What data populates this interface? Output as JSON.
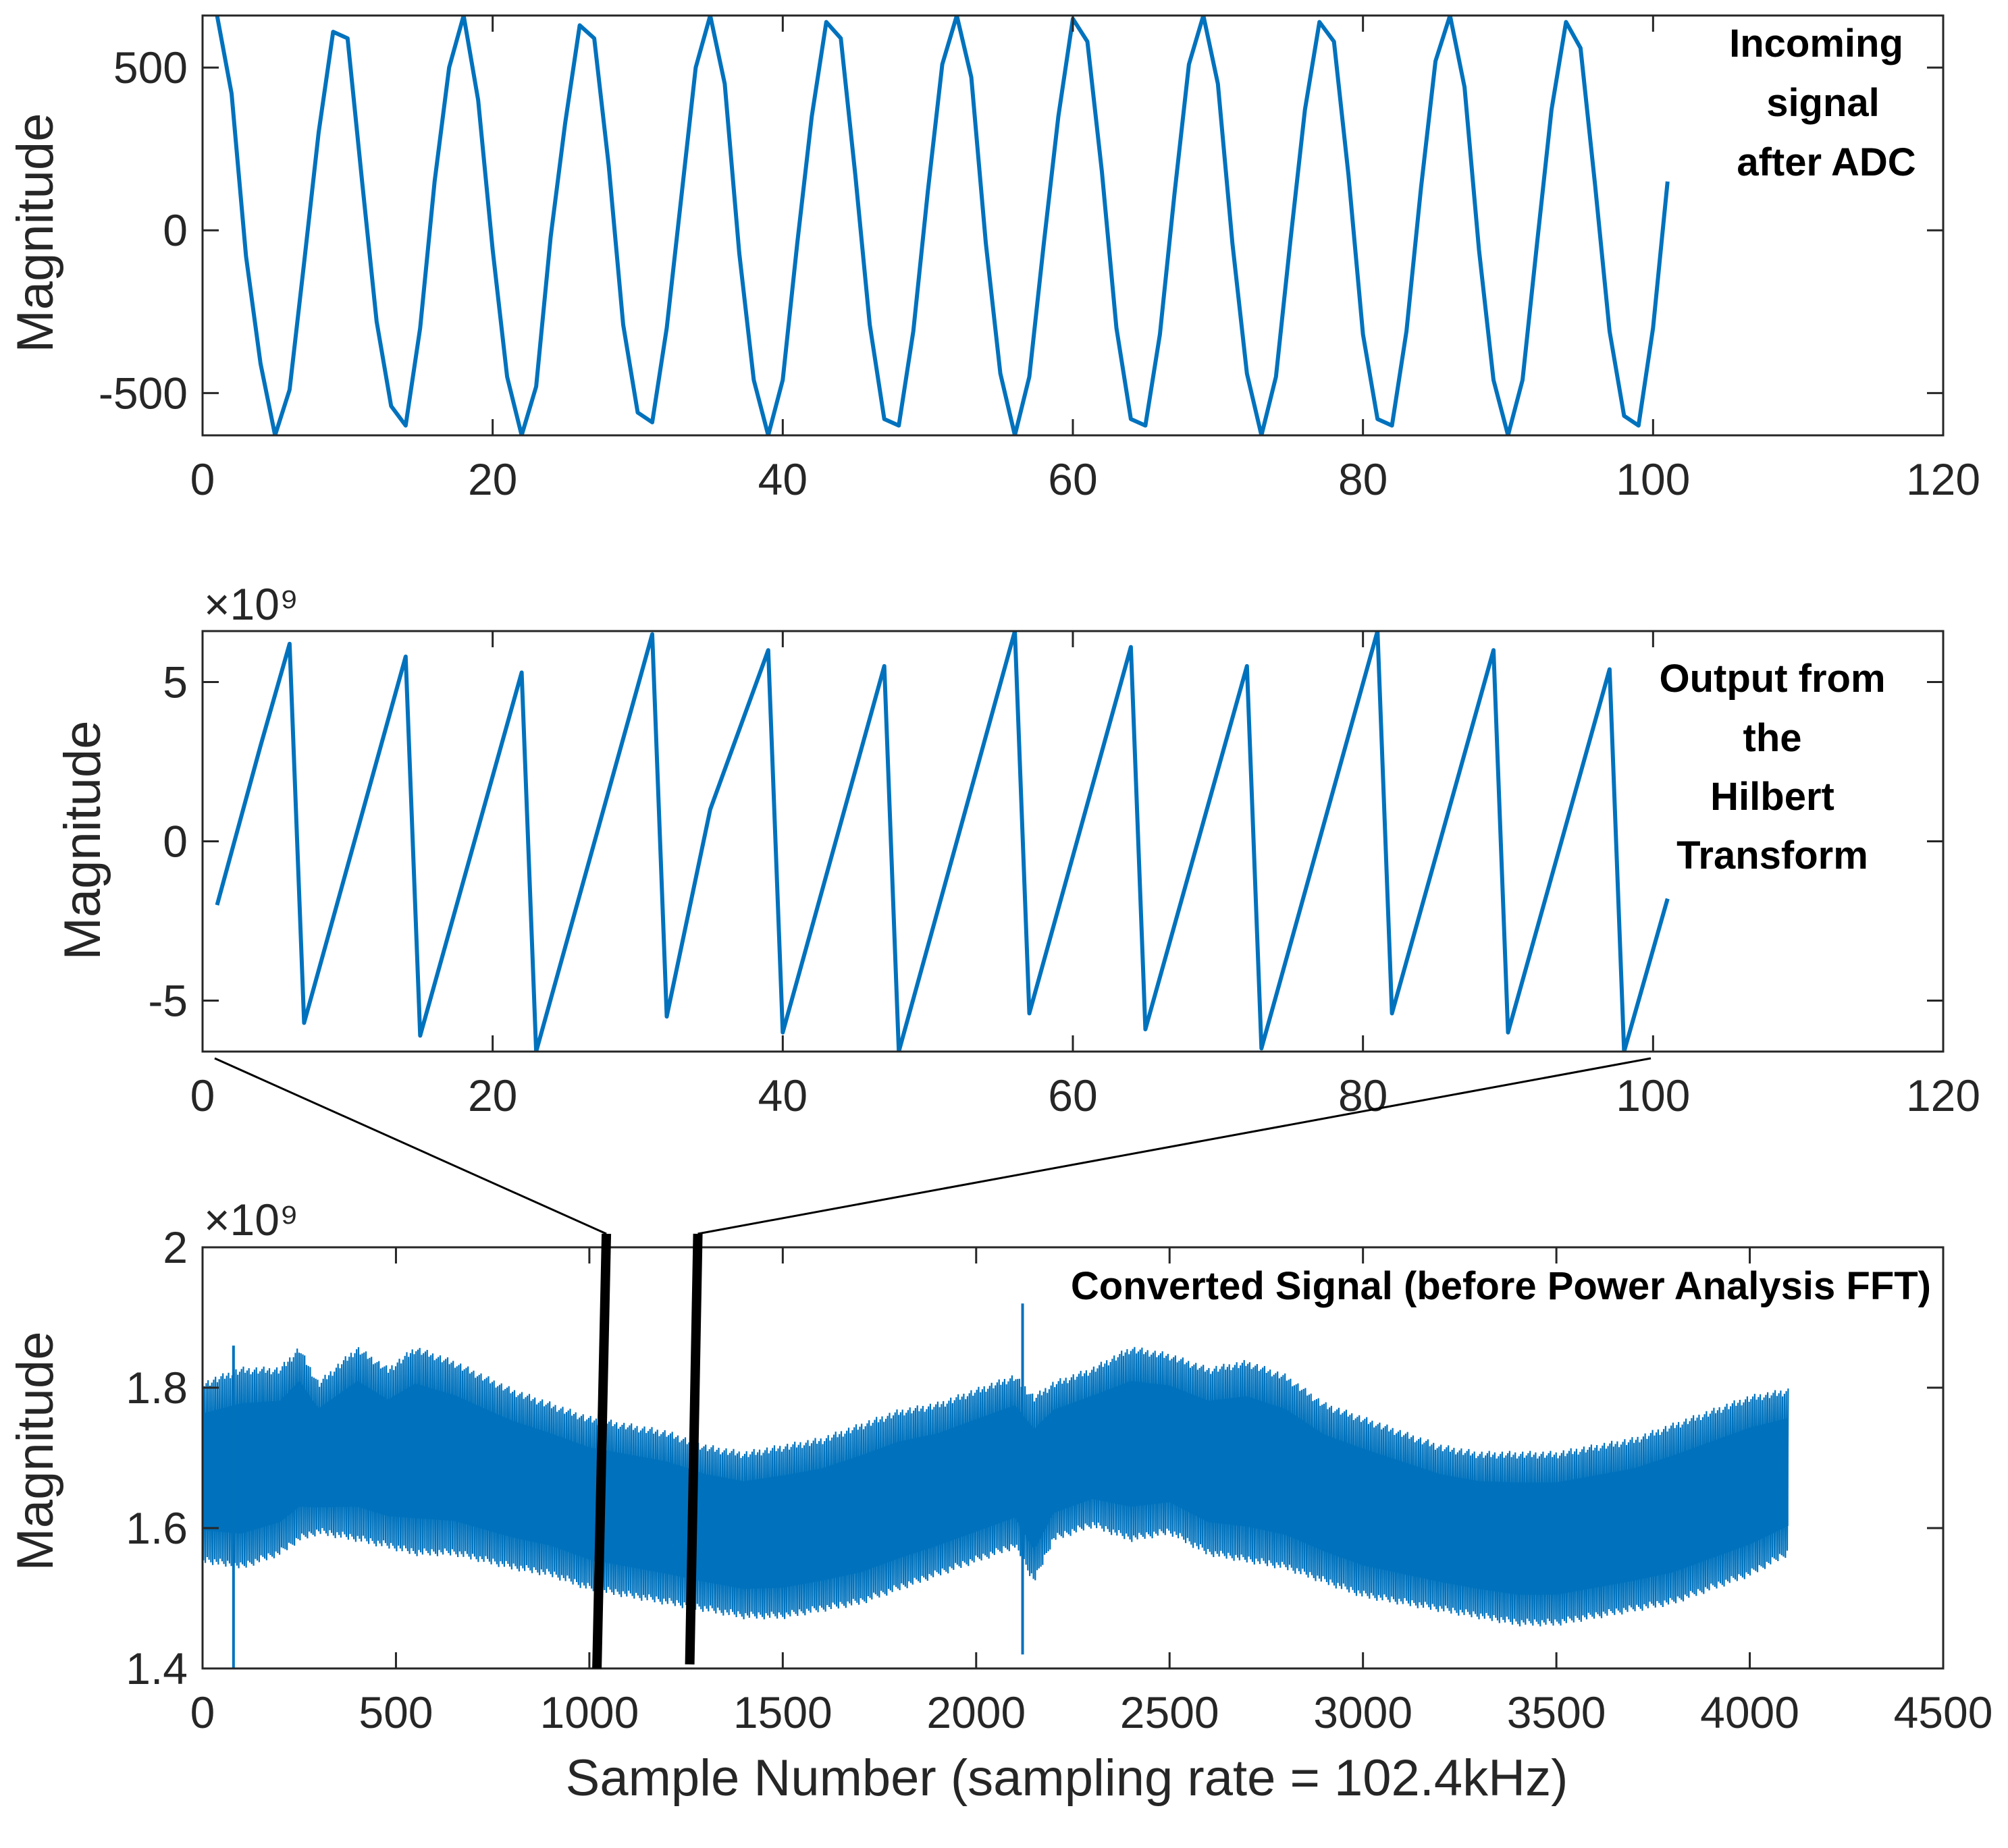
{
  "colors": {
    "series": "#0072BD",
    "axis": "#262626",
    "annotation": "#000000"
  },
  "chart_data": [
    {
      "type": "line",
      "panel": "top",
      "annotation": [
        "Incoming",
        "signal",
        "after ADC"
      ],
      "ylabel": "Magnitude",
      "xlabel": "",
      "xlim": [
        0,
        120
      ],
      "ylim": [
        -630,
        660
      ],
      "xticks": [
        0,
        20,
        40,
        60,
        80,
        100,
        120
      ],
      "xtick_labels": [
        "0",
        "20",
        "40",
        "60",
        "80",
        "100",
        "120"
      ],
      "yticks": [
        -500,
        0,
        500
      ],
      "ytick_labels": [
        "-500",
        "0",
        "500"
      ],
      "series": [
        {
          "name": "Incoming signal",
          "x": [
            1,
            2,
            3,
            4,
            5,
            6,
            7,
            8,
            9,
            10,
            11,
            12,
            13,
            14,
            15,
            16,
            17,
            18,
            19,
            20,
            21,
            22,
            23,
            24,
            25,
            26,
            27,
            28,
            29,
            30,
            31,
            32,
            33,
            34,
            35,
            36,
            37,
            38,
            39,
            40,
            41,
            42,
            43,
            44,
            45,
            46,
            47,
            48,
            49,
            50,
            51,
            52,
            53,
            54,
            55,
            56,
            57,
            58,
            59,
            60,
            61,
            62,
            63,
            64,
            65,
            66,
            67,
            68,
            69,
            70,
            71,
            72,
            73,
            74,
            75,
            76,
            77,
            78,
            79,
            80,
            81,
            82,
            83,
            84,
            85,
            86,
            87,
            88,
            89,
            90,
            91,
            92,
            93,
            94,
            95,
            96,
            97,
            98,
            99,
            100,
            101
          ],
          "y": [
            660,
            420,
            -80,
            -410,
            -630,
            -490,
            -100,
            300,
            610,
            590,
            150,
            -280,
            -540,
            -600,
            -300,
            150,
            500,
            660,
            400,
            -60,
            -450,
            -630,
            -480,
            -20,
            330,
            630,
            590,
            200,
            -290,
            -560,
            -590,
            -300,
            100,
            500,
            660,
            450,
            -70,
            -460,
            -630,
            -460,
            -40,
            350,
            640,
            590,
            170,
            -290,
            -580,
            -600,
            -310,
            120,
            510,
            660,
            470,
            -40,
            -440,
            -630,
            -450,
            -40,
            350,
            650,
            580,
            180,
            -300,
            -580,
            -600,
            -320,
            110,
            510,
            660,
            450,
            -40,
            -440,
            -630,
            -450,
            -30,
            370,
            640,
            580,
            170,
            -320,
            -580,
            -600,
            -310,
            130,
            520,
            660,
            440,
            -60,
            -460,
            -630,
            -460,
            -40,
            370,
            640,
            560,
            140,
            -310,
            -570,
            -600,
            -300,
            150
          ]
        }
      ]
    },
    {
      "type": "line",
      "panel": "middle",
      "annotation": [
        "Output from",
        "the",
        "Hilbert",
        "Transform"
      ],
      "ylabel": "Magnitude",
      "xlabel": "",
      "exponent": "×10⁹",
      "xlim": [
        0,
        120
      ],
      "ylim": [
        -6.6,
        6.6
      ],
      "xticks": [
        0,
        20,
        40,
        60,
        80,
        100,
        120
      ],
      "xtick_labels": [
        "0",
        "20",
        "40",
        "60",
        "80",
        "100",
        "120"
      ],
      "yticks": [
        -5,
        0,
        5
      ],
      "ytick_labels": [
        "-5",
        "0",
        "5"
      ],
      "series": [
        {
          "name": "Hilbert transform output (×10⁹)",
          "x": [
            1,
            4,
            6,
            7,
            14,
            15,
            22,
            23,
            31,
            32,
            35,
            39,
            40,
            47,
            48,
            56,
            57,
            64,
            65,
            72,
            73,
            81,
            82,
            89,
            90,
            97,
            98,
            101
          ],
          "y": [
            -2.0,
            3.0,
            6.2,
            -5.7,
            5.8,
            -6.1,
            5.3,
            -6.6,
            6.5,
            -5.5,
            1.0,
            6.0,
            -6.0,
            5.5,
            -6.6,
            6.6,
            -5.4,
            6.1,
            -5.9,
            5.5,
            -6.5,
            6.6,
            -5.4,
            6.0,
            -6.0,
            5.4,
            -6.6,
            -1.8
          ]
        }
      ]
    },
    {
      "type": "line",
      "panel": "bottom",
      "annotation": [
        "Converted Signal (before Power Analysis FFT)"
      ],
      "ylabel": "Magnitude",
      "xlabel": "Sample Number (sampling rate = 102.4kHz)",
      "exponent": "×10⁹",
      "xlim": [
        0,
        4500
      ],
      "ylim": [
        1.4,
        2.0
      ],
      "xticks": [
        0,
        500,
        1000,
        1500,
        2000,
        2500,
        3000,
        3500,
        4000,
        4500
      ],
      "xtick_labels": [
        "0",
        "500",
        "1000",
        "1500",
        "2000",
        "2500",
        "3000",
        "3500",
        "4000",
        "4500"
      ],
      "yticks": [
        1.4,
        1.6,
        1.8,
        2.0
      ],
      "ytick_labels": [
        "1.4",
        "1.6",
        "1.8",
        "2"
      ],
      "envelope": {
        "x": [
          0,
          100,
          200,
          250,
          300,
          400,
          480,
          550,
          650,
          800,
          900,
          1000,
          1100,
          1200,
          1300,
          1400,
          1500,
          1600,
          1700,
          1800,
          1900,
          2000,
          2100,
          2150,
          2200,
          2300,
          2400,
          2500,
          2600,
          2700,
          2800,
          2900,
          3000,
          3100,
          3200,
          3300,
          3400,
          3500,
          3600,
          3700,
          3800,
          3900,
          4000,
          4100
        ],
        "upper": [
          1.81,
          1.83,
          1.83,
          1.86,
          1.81,
          1.86,
          1.83,
          1.86,
          1.84,
          1.8,
          1.78,
          1.76,
          1.75,
          1.74,
          1.72,
          1.71,
          1.72,
          1.73,
          1.75,
          1.77,
          1.78,
          1.8,
          1.82,
          1.79,
          1.81,
          1.83,
          1.86,
          1.85,
          1.83,
          1.84,
          1.82,
          1.78,
          1.76,
          1.74,
          1.72,
          1.71,
          1.71,
          1.71,
          1.72,
          1.73,
          1.75,
          1.77,
          1.79,
          1.8
        ],
        "lower": [
          1.55,
          1.54,
          1.56,
          1.58,
          1.59,
          1.58,
          1.57,
          1.56,
          1.56,
          1.54,
          1.53,
          1.51,
          1.5,
          1.49,
          1.48,
          1.47,
          1.47,
          1.48,
          1.49,
          1.51,
          1.53,
          1.55,
          1.57,
          1.52,
          1.58,
          1.6,
          1.58,
          1.59,
          1.56,
          1.55,
          1.54,
          1.52,
          1.5,
          1.49,
          1.48,
          1.47,
          1.46,
          1.46,
          1.47,
          1.48,
          1.49,
          1.51,
          1.53,
          1.56
        ]
      },
      "spikes": [
        {
          "x": 80,
          "low": 1.4,
          "high": 1.86
        },
        {
          "x": 2120,
          "low": 1.42,
          "high": 1.92
        }
      ],
      "zoom_window": {
        "x_start": 1030,
        "x_end": 1270
      }
    }
  ]
}
